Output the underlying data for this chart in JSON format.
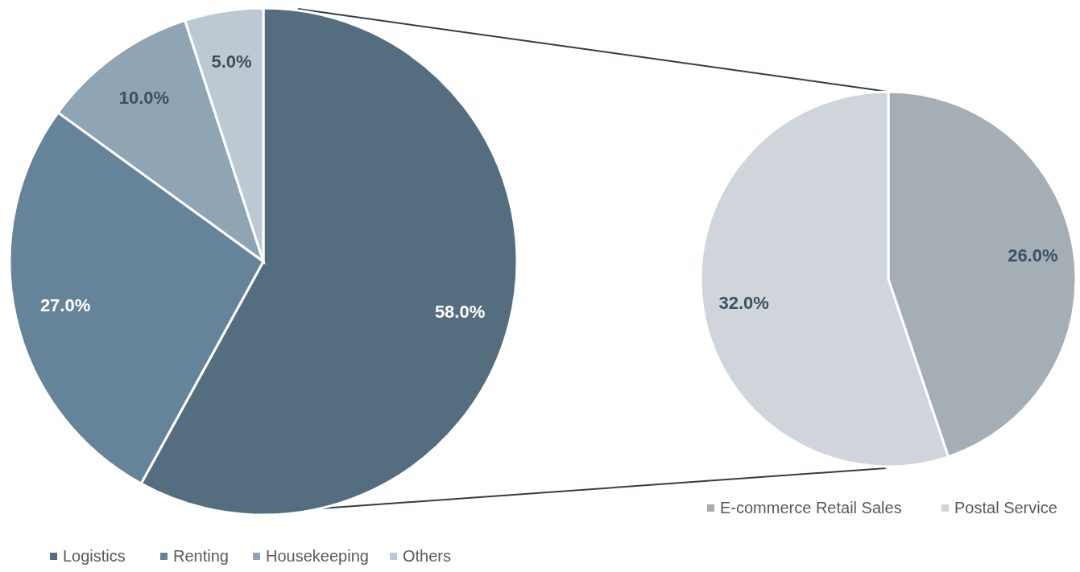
{
  "chart_data": [
    {
      "type": "pie",
      "categories": [
        "Logistics",
        "Renting",
        "Housekeeping",
        "Others"
      ],
      "values": [
        58,
        27,
        10,
        5
      ],
      "colors": [
        "#546e80",
        "#668499",
        "#8fa5b4",
        "#bdc9d2"
      ],
      "value_labels": [
        "58.0%",
        "27.0%",
        "10.0%",
        "5.0%"
      ],
      "legend": "bottom left"
    },
    {
      "type": "pie",
      "categories": [
        "E-commerce Retail Sales",
        "Postal Service"
      ],
      "values": [
        26,
        32
      ],
      "colors": [
        "#a5adb5",
        "#cfd5db"
      ],
      "value_labels": [
        "26.0%",
        "32.0%"
      ],
      "legend": "bottom right"
    }
  ]
}
